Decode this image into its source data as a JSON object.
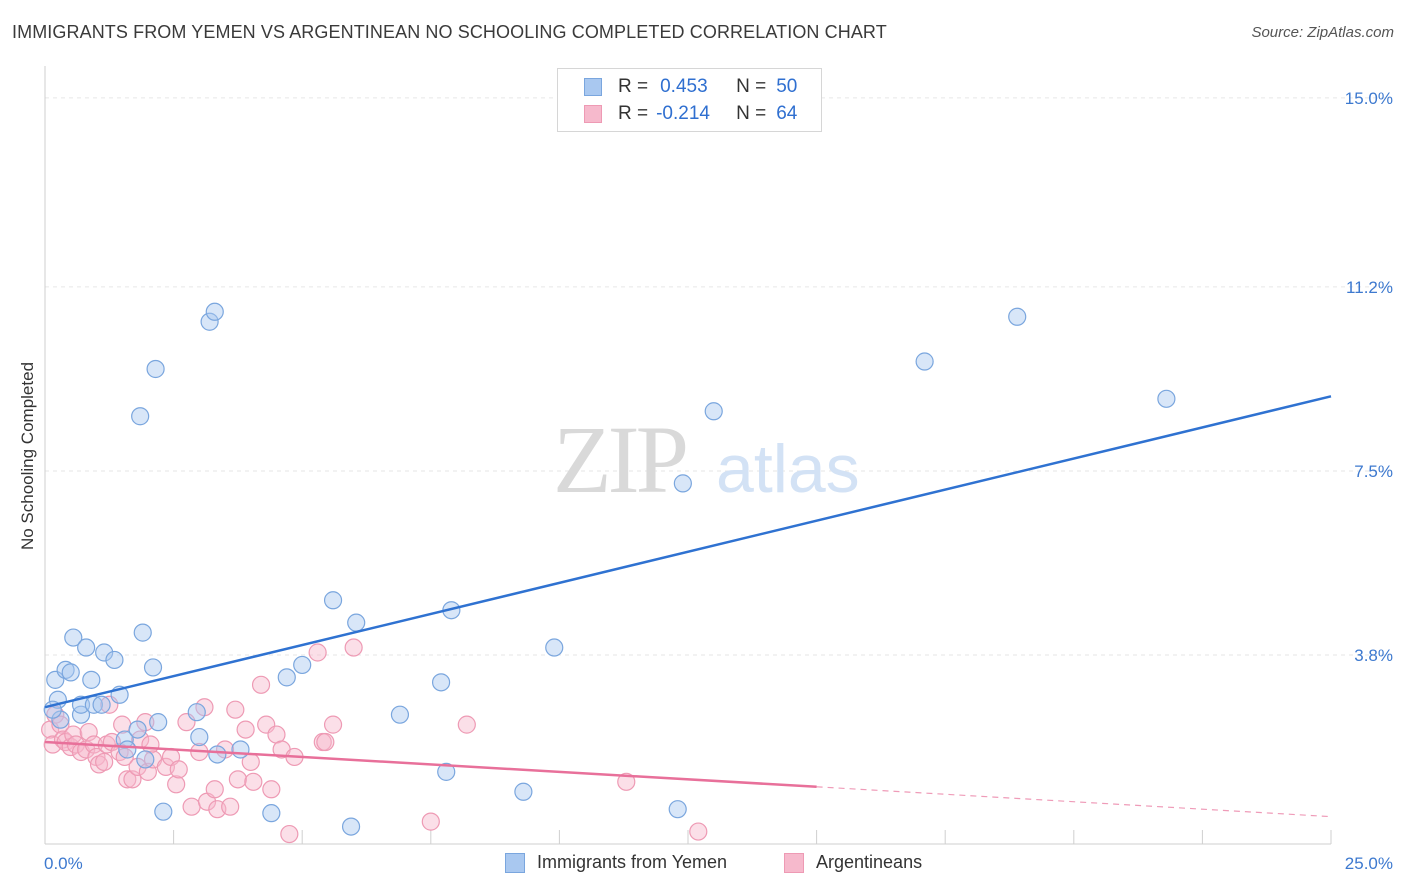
{
  "title": "IMMIGRANTS FROM YEMEN VS ARGENTINEAN NO SCHOOLING COMPLETED CORRELATION CHART",
  "source": "Source: ZipAtlas.com",
  "watermark": {
    "zip": "ZIP",
    "atlas": "atlas"
  },
  "legend": {
    "series1": {
      "r_label": "R =",
      "r_value": "0.453",
      "n_label": "N =",
      "n_value": "50"
    },
    "series2": {
      "r_label": "R =",
      "r_value": "-0.214",
      "n_label": "N =",
      "n_value": "64"
    }
  },
  "bottom_legend": {
    "series1": "Immigrants from Yemen",
    "series2": "Argentineans"
  },
  "colors": {
    "blue_fill": "#a9c8f0",
    "blue_stroke": "#7aa6de",
    "blue_line": "#2f72d1",
    "pink_fill": "#f6b9cc",
    "pink_stroke": "#ee9ab4",
    "pink_line": "#e8709a",
    "axis_text": "#3d79cf",
    "grid": "#e6e6e6"
  },
  "chart_data": {
    "type": "scatter",
    "title": "IMMIGRANTS FROM YEMEN VS ARGENTINEAN NO SCHOOLING COMPLETED CORRELATION CHART",
    "xlabel": "",
    "ylabel": "No Schooling Completed",
    "xlim": [
      0,
      25
    ],
    "ylim": [
      0,
      15.4
    ],
    "x_tick_labels": [
      "0.0%",
      "25.0%"
    ],
    "y_ticks": [
      3.8,
      7.5,
      11.2,
      15.0
    ],
    "y_tick_labels": [
      "3.8%",
      "7.5%",
      "11.2%",
      "15.0%"
    ],
    "grid": true,
    "series": [
      {
        "name": "Immigrants from Yemen",
        "r": 0.453,
        "n": 50,
        "trend": {
          "x": [
            0,
            25
          ],
          "y": [
            2.75,
            9.0
          ]
        },
        "points": [
          [
            0.2,
            3.3
          ],
          [
            0.25,
            2.9
          ],
          [
            0.3,
            2.5
          ],
          [
            0.4,
            3.5
          ],
          [
            0.5,
            3.45
          ],
          [
            0.55,
            4.15
          ],
          [
            0.7,
            2.6
          ],
          [
            0.7,
            2.8
          ],
          [
            0.8,
            3.95
          ],
          [
            0.9,
            3.3
          ],
          [
            0.95,
            2.8
          ],
          [
            1.1,
            2.8
          ],
          [
            1.15,
            3.85
          ],
          [
            1.35,
            3.7
          ],
          [
            1.45,
            3.0
          ],
          [
            1.55,
            2.1
          ],
          [
            1.6,
            1.9
          ],
          [
            1.8,
            2.3
          ],
          [
            1.85,
            8.6
          ],
          [
            1.9,
            4.25
          ],
          [
            1.95,
            1.7
          ],
          [
            2.1,
            3.55
          ],
          [
            2.15,
            9.55
          ],
          [
            2.2,
            2.45
          ],
          [
            2.3,
            0.65
          ],
          [
            2.95,
            2.65
          ],
          [
            3.0,
            2.15
          ],
          [
            3.2,
            10.5
          ],
          [
            3.3,
            10.7
          ],
          [
            3.35,
            1.8
          ],
          [
            3.8,
            1.9
          ],
          [
            4.4,
            0.62
          ],
          [
            4.7,
            3.35
          ],
          [
            5.0,
            3.6
          ],
          [
            5.6,
            4.9
          ],
          [
            5.95,
            0.35
          ],
          [
            6.05,
            4.45
          ],
          [
            6.9,
            2.6
          ],
          [
            7.7,
            3.25
          ],
          [
            7.8,
            1.45
          ],
          [
            7.9,
            4.7
          ],
          [
            9.3,
            1.05
          ],
          [
            9.9,
            3.95
          ],
          [
            12.3,
            0.7
          ],
          [
            12.4,
            7.25
          ],
          [
            13.0,
            8.7
          ],
          [
            17.1,
            9.7
          ],
          [
            18.9,
            10.6
          ],
          [
            21.8,
            8.95
          ],
          [
            0.15,
            2.7
          ]
        ]
      },
      {
        "name": "Argentineans",
        "r": -0.214,
        "n": 64,
        "trend": {
          "x": [
            0,
            15
          ],
          "y": [
            2.05,
            1.15
          ]
        },
        "trend_dashed": {
          "x": [
            15,
            25
          ],
          "y": [
            1.15,
            0.55
          ]
        },
        "points": [
          [
            0.1,
            2.3
          ],
          [
            0.15,
            2.0
          ],
          [
            0.2,
            2.6
          ],
          [
            0.3,
            2.4
          ],
          [
            0.35,
            2.1
          ],
          [
            0.4,
            2.05
          ],
          [
            0.5,
            1.95
          ],
          [
            0.55,
            2.2
          ],
          [
            0.6,
            2.0
          ],
          [
            0.7,
            1.85
          ],
          [
            0.8,
            1.9
          ],
          [
            0.85,
            2.25
          ],
          [
            0.95,
            2.0
          ],
          [
            1.0,
            1.75
          ],
          [
            1.05,
            1.6
          ],
          [
            1.15,
            1.65
          ],
          [
            1.2,
            2.0
          ],
          [
            1.25,
            2.8
          ],
          [
            1.3,
            2.05
          ],
          [
            1.45,
            1.85
          ],
          [
            1.5,
            2.4
          ],
          [
            1.55,
            1.75
          ],
          [
            1.6,
            1.3
          ],
          [
            1.7,
            1.3
          ],
          [
            1.8,
            1.55
          ],
          [
            1.85,
            2.1
          ],
          [
            1.95,
            2.45
          ],
          [
            2.0,
            1.45
          ],
          [
            2.05,
            2.0
          ],
          [
            2.1,
            1.7
          ],
          [
            2.35,
            1.55
          ],
          [
            2.45,
            1.75
          ],
          [
            2.55,
            1.2
          ],
          [
            2.6,
            1.5
          ],
          [
            2.75,
            2.45
          ],
          [
            2.85,
            0.75
          ],
          [
            3.0,
            1.85
          ],
          [
            3.1,
            2.75
          ],
          [
            3.15,
            0.85
          ],
          [
            3.3,
            1.1
          ],
          [
            3.35,
            0.7
          ],
          [
            3.5,
            1.9
          ],
          [
            3.6,
            0.75
          ],
          [
            3.7,
            2.7
          ],
          [
            3.75,
            1.3
          ],
          [
            3.9,
            2.3
          ],
          [
            4.0,
            1.65
          ],
          [
            4.05,
            1.25
          ],
          [
            4.2,
            3.2
          ],
          [
            4.3,
            2.4
          ],
          [
            4.4,
            1.1
          ],
          [
            4.5,
            2.2
          ],
          [
            4.6,
            1.9
          ],
          [
            4.75,
            0.2
          ],
          [
            4.85,
            1.75
          ],
          [
            5.3,
            3.85
          ],
          [
            5.4,
            2.05
          ],
          [
            5.45,
            2.05
          ],
          [
            5.6,
            2.4
          ],
          [
            6.0,
            3.95
          ],
          [
            7.5,
            0.45
          ],
          [
            8.2,
            2.4
          ],
          [
            11.3,
            1.25
          ],
          [
            12.7,
            0.25
          ]
        ]
      }
    ]
  }
}
